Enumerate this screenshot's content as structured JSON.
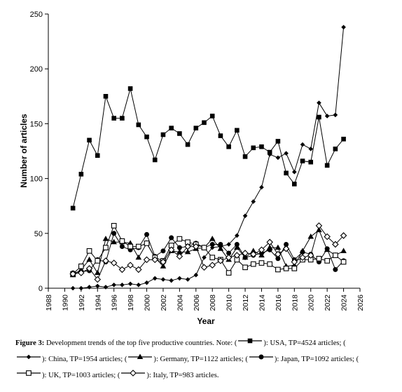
{
  "chart_data": {
    "type": "line",
    "xlabel": "Year",
    "ylabel": "Number of articles",
    "xlim": [
      1988,
      2026
    ],
    "ylim": [
      0,
      250
    ],
    "x_ticks": [
      "1988",
      "1990",
      "1992",
      "1994",
      "1996",
      "1998",
      "2000",
      "2002",
      "2004",
      "2006",
      "2008",
      "2010",
      "2012",
      "2014",
      "2016",
      "2018",
      "2020",
      "2022",
      "2024",
      "2026"
    ],
    "y_ticks": [
      "0",
      "50",
      "100",
      "150",
      "200",
      "250"
    ],
    "grid": false,
    "legend": "caption-below",
    "series": [
      {
        "name": "USA",
        "marker": "square-filled",
        "x": [
          1991,
          1992,
          1993,
          1994,
          1995,
          1996,
          1997,
          1998,
          1999,
          2000,
          2001,
          2002,
          2003,
          2004,
          2005,
          2006,
          2007,
          2008,
          2009,
          2010,
          2011,
          2012,
          2013,
          2014,
          2015,
          2016,
          2017,
          2018,
          2019,
          2020,
          2021,
          2022,
          2023,
          2024
        ],
        "values": [
          73,
          104,
          135,
          121,
          175,
          155,
          155,
          182,
          149,
          138,
          117,
          140,
          146,
          141,
          131,
          146,
          151,
          157,
          139,
          129,
          144,
          120,
          128,
          129,
          124,
          134,
          105,
          95,
          116,
          115,
          156,
          112,
          127,
          136
        ]
      },
      {
        "name": "China",
        "marker": "diamond-filled",
        "x": [
          1991,
          1992,
          1993,
          1994,
          1995,
          1996,
          1997,
          1998,
          1999,
          2000,
          2001,
          2002,
          2003,
          2004,
          2005,
          2006,
          2007,
          2008,
          2009,
          2010,
          2011,
          2012,
          2013,
          2014,
          2015,
          2016,
          2017,
          2018,
          2019,
          2020,
          2021,
          2022,
          2023,
          2024
        ],
        "values": [
          0,
          0,
          1,
          2,
          1,
          3,
          3,
          4,
          3,
          5,
          9,
          8,
          7,
          9,
          8,
          12,
          28,
          37,
          38,
          40,
          48,
          66,
          79,
          92,
          122,
          119,
          123,
          106,
          131,
          127,
          169,
          157,
          158,
          238
        ]
      },
      {
        "name": "Germany",
        "marker": "triangle-filled",
        "x": [
          1991,
          1992,
          1993,
          1994,
          1995,
          1996,
          1997,
          1998,
          1999,
          2000,
          2001,
          2002,
          2003,
          2004,
          2005,
          2006,
          2007,
          2008,
          2009,
          2010,
          2011,
          2012,
          2013,
          2014,
          2015,
          2016,
          2017,
          2018,
          2019,
          2020,
          2021,
          2022,
          2023,
          2024
        ],
        "values": [
          12,
          17,
          26,
          14,
          45,
          42,
          42,
          41,
          28,
          41,
          28,
          20,
          34,
          33,
          33,
          36,
          37,
          45,
          36,
          26,
          37,
          28,
          34,
          30,
          37,
          37,
          20,
          21,
          34,
          47,
          53,
          35,
          30,
          34
        ]
      },
      {
        "name": "Japan",
        "marker": "circle-filled",
        "x": [
          1991,
          1992,
          1993,
          1994,
          1995,
          1996,
          1997,
          1998,
          1999,
          2000,
          2001,
          2002,
          2003,
          2004,
          2005,
          2006,
          2007,
          2008,
          2009,
          2010,
          2011,
          2012,
          2013,
          2014,
          2015,
          2016,
          2017,
          2018,
          2019,
          2020,
          2021,
          2022,
          2023,
          2024
        ],
        "values": [
          14,
          15,
          16,
          26,
          24,
          50,
          38,
          35,
          37,
          49,
          29,
          34,
          46,
          37,
          38,
          41,
          37,
          40,
          40,
          32,
          40,
          28,
          30,
          32,
          35,
          27,
          40,
          26,
          33,
          31,
          24,
          36,
          17,
          25
        ]
      },
      {
        "name": "UK",
        "marker": "square-open",
        "x": [
          1991,
          1992,
          1993,
          1994,
          1995,
          1996,
          1997,
          1998,
          1999,
          2000,
          2001,
          2002,
          2003,
          2004,
          2005,
          2006,
          2007,
          2008,
          2009,
          2010,
          2011,
          2012,
          2013,
          2014,
          2015,
          2016,
          2017,
          2018,
          2019,
          2020,
          2021,
          2022,
          2023,
          2024
        ],
        "values": [
          13,
          20,
          34,
          25,
          37,
          57,
          43,
          38,
          38,
          41,
          28,
          25,
          39,
          45,
          42,
          40,
          37,
          28,
          26,
          14,
          26,
          19,
          22,
          23,
          22,
          17,
          18,
          18,
          26,
          26,
          27,
          25,
          30,
          24
        ]
      },
      {
        "name": "Italy",
        "marker": "diamond-open",
        "x": [
          1991,
          1992,
          1993,
          1994,
          1995,
          1996,
          1997,
          1998,
          1999,
          2000,
          2001,
          2002,
          2003,
          2004,
          2005,
          2006,
          2007,
          2008,
          2009,
          2010,
          2011,
          2012,
          2013,
          2014,
          2015,
          2016,
          2017,
          2018,
          2019,
          2020,
          2021,
          2022,
          2023,
          2024
        ],
        "values": [
          13,
          14,
          18,
          8,
          25,
          23,
          17,
          21,
          17,
          26,
          26,
          24,
          35,
          29,
          38,
          38,
          19,
          21,
          25,
          28,
          30,
          32,
          31,
          35,
          42,
          31,
          36,
          24,
          28,
          30,
          57,
          47,
          40,
          48
        ]
      }
    ]
  },
  "caption": {
    "label": "Figure 3:",
    "text_a": " Development trends of the top five productive countries. Note: (",
    "usa": "): USA, TP=4524 articles; (",
    "china": "): China, TP=1954 articles; (",
    "germany": "): Germany, TP=1122 articles; (",
    "japan": "): Japan, TP=1092 articles; (",
    "uk": "): UK, TP=1003 articles; (",
    "italy": "): Italy, TP=983 articles."
  }
}
